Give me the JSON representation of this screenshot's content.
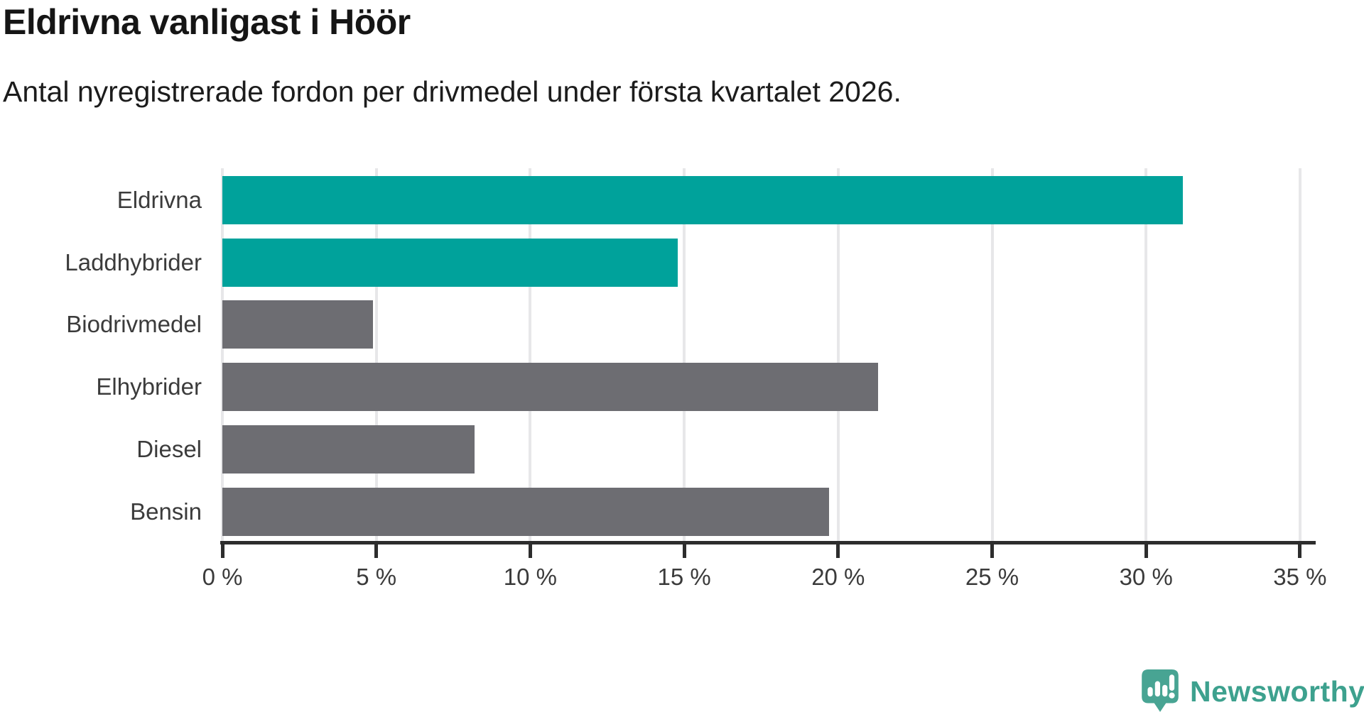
{
  "title": "Eldrivna vanligast i Höör",
  "subtitle": "Antal nyregistrerade fordon per drivmedel under första kvartalet 2026.",
  "branding": {
    "name": "Newsworthy",
    "icon": "newsworthy-bubble-chart-icon",
    "text_color": "#3da18e",
    "icon_color": "#48a493"
  },
  "colors": {
    "highlight_bar": "#00a29b",
    "default_bar": "#6d6d72",
    "gridline": "#e7e7e9",
    "axis": "#2d2d2d",
    "tick_label": "#3b3b3b"
  },
  "chart_data": {
    "type": "bar",
    "orientation": "horizontal",
    "title": "Eldrivna vanligast i Höör",
    "subtitle": "Antal nyregistrerade fordon per drivmedel under första kvartalet 2026.",
    "categories": [
      "Eldrivna",
      "Laddhybrider",
      "Biodrivmedel",
      "Elhybrider",
      "Diesel",
      "Bensin"
    ],
    "values": [
      31.2,
      14.8,
      4.9,
      21.3,
      8.2,
      19.7
    ],
    "bar_colors": [
      "#00a29b",
      "#00a29b",
      "#6d6d72",
      "#6d6d72",
      "#6d6d72",
      "#6d6d72"
    ],
    "xlabel": "",
    "ylabel": "",
    "xlim": [
      0,
      35
    ],
    "x_ticks": [
      0,
      5,
      10,
      15,
      20,
      25,
      30,
      35
    ],
    "x_tick_labels": [
      "0 %",
      "5 %",
      "10 %",
      "15 %",
      "20 %",
      "25 %",
      "30 %",
      "35 %"
    ],
    "grid": true,
    "legend": false
  }
}
